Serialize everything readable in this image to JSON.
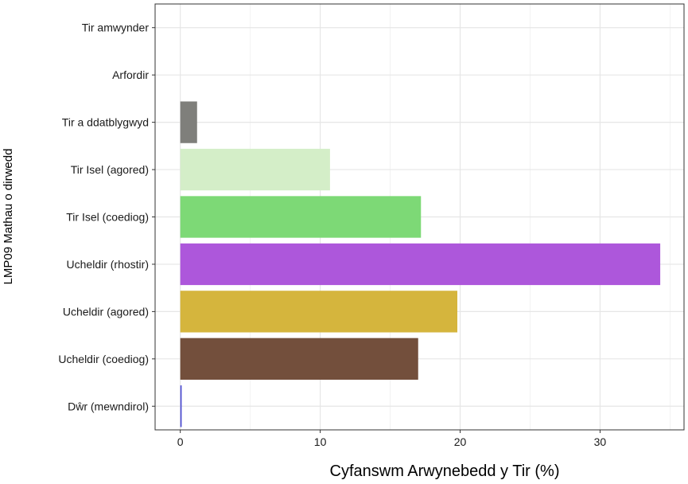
{
  "chart_data": {
    "type": "bar",
    "orientation": "horizontal",
    "categories": [
      "Tir amwynder",
      "Arfordir",
      "Tir a ddatblygwyd",
      "Tir Isel (agored)",
      "Tir Isel (coediog)",
      "Ucheldir (rhostir)",
      "Ucheldir (agored)",
      "Ucheldir (coediog)",
      "Dŵr (mewndirol)"
    ],
    "values": [
      0,
      0,
      1.2,
      10.7,
      17.2,
      34.3,
      19.8,
      17.0,
      0.1
    ],
    "colors": [
      "#cccccc",
      "#cccccc",
      "#7f7f7b",
      "#d4eec8",
      "#7dd976",
      "#ad57db",
      "#d5b53d",
      "#734f3c",
      "#4f4fd2"
    ],
    "xlabel": "Cyfanswm Arwynebedd y Tir (%)",
    "ylabel": "LMP09 Mathau o dirwedd",
    "xlim": [
      -1.8,
      36
    ],
    "xticks": [
      0,
      10,
      20,
      30
    ],
    "grid": true,
    "legend": "none"
  }
}
